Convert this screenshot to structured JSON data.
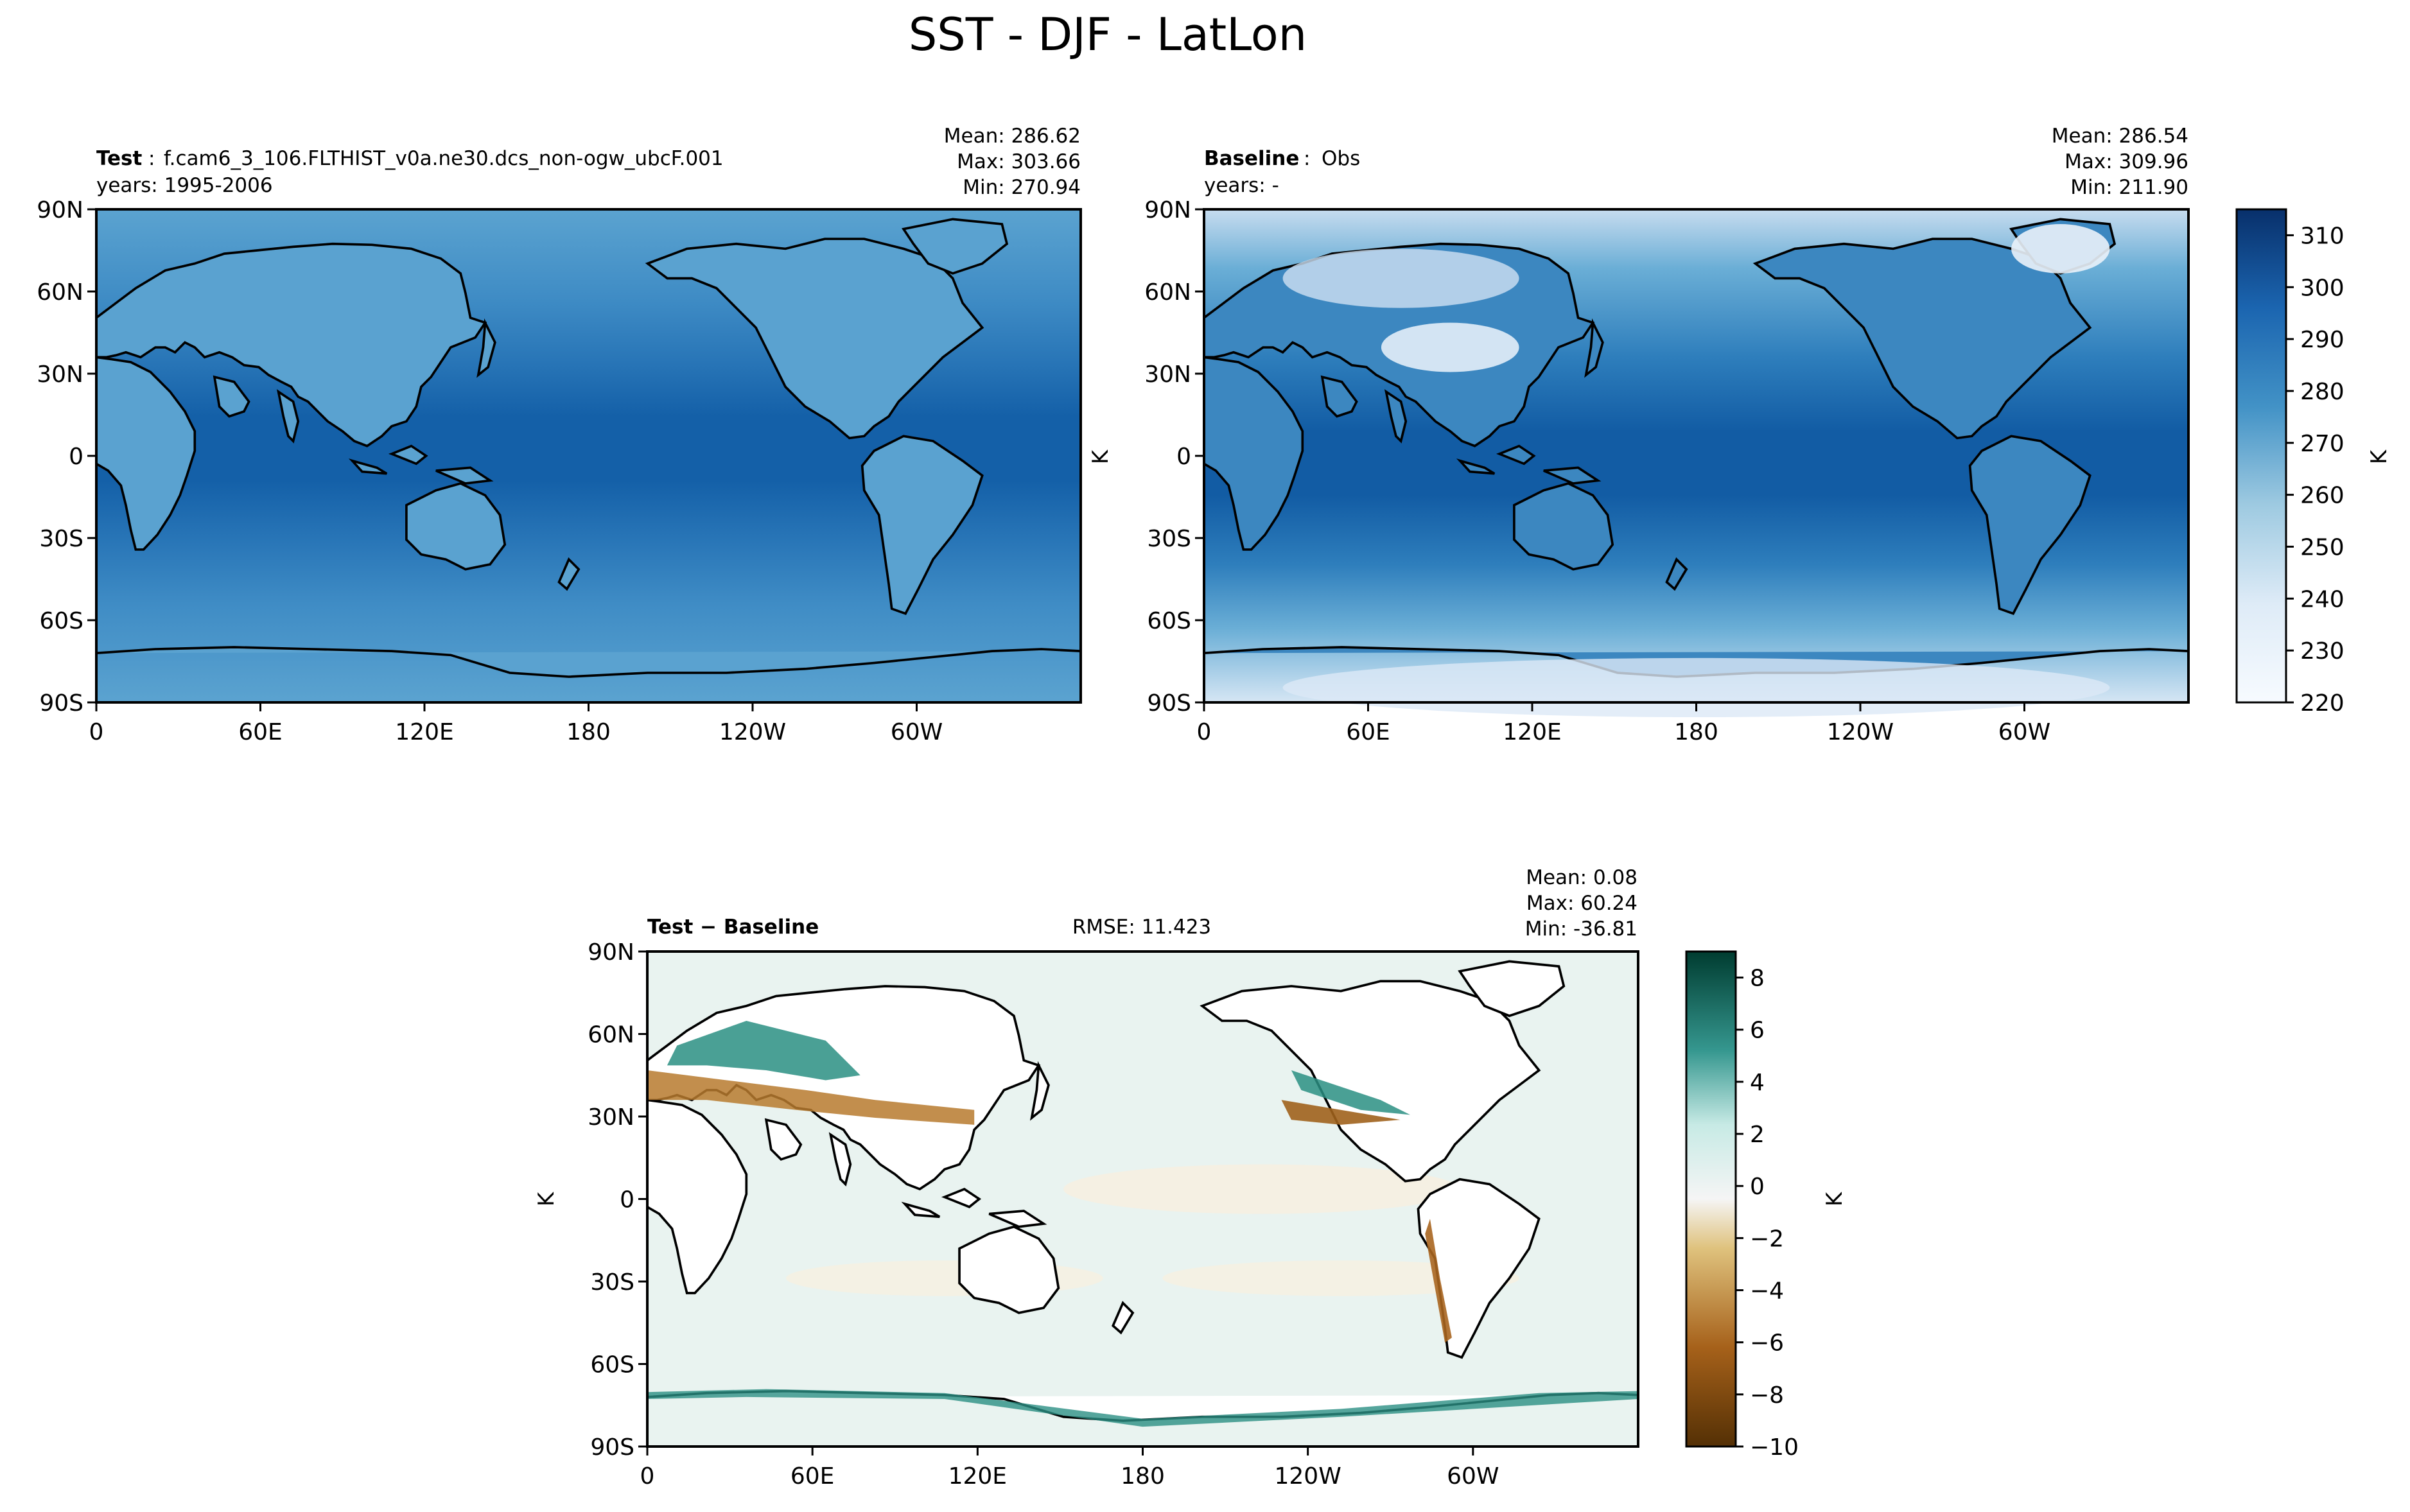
{
  "figure": {
    "title": "SST - DJF - LatLon"
  },
  "chart_data": [
    {
      "type": "heatmap",
      "panel": "test",
      "label_bold": "Test",
      "label_sep": ":",
      "label_value": "f.cam6_3_106.FLTHIST_v0a.ne30.dcs_non-ogw_ubcF.001",
      "years": "years: 1995-2006",
      "stats": [
        "Mean: 286.62",
        "Max: 303.66",
        "Min: 270.94"
      ],
      "yticks": [
        "90N",
        "60N",
        "30N",
        "0",
        "30S",
        "60S",
        "90S"
      ],
      "xticks": [
        "0",
        "60E",
        "120E",
        "180",
        "120W",
        "60W"
      ],
      "ylabel": "",
      "colormap": "Blues"
    },
    {
      "type": "heatmap",
      "panel": "baseline",
      "label_bold": "Baseline",
      "label_sep": ":",
      "label_value": "Obs",
      "years": "years: -",
      "stats": [
        "Mean: 286.54",
        "Max: 309.96",
        "Min: 211.90"
      ],
      "yticks": [
        "90N",
        "60N",
        "30N",
        "0",
        "30S",
        "60S",
        "90S"
      ],
      "xticks": [
        "0",
        "60E",
        "120E",
        "180",
        "120W",
        "60W"
      ],
      "ylabel": "K",
      "colormap": "Blues",
      "colorbar": {
        "label": "K",
        "range": [
          220,
          315
        ],
        "ticks": [
          "220",
          "230",
          "240",
          "250",
          "260",
          "270",
          "280",
          "290",
          "300",
          "310"
        ]
      }
    },
    {
      "type": "heatmap",
      "panel": "difference",
      "label_bold": "Test − Baseline",
      "rmse": "RMSE: 11.423",
      "stats": [
        "Mean:  0.08",
        "Max: 60.24",
        "Min: -36.81"
      ],
      "yticks": [
        "90N",
        "60N",
        "30N",
        "0",
        "30S",
        "60S",
        "90S"
      ],
      "xticks": [
        "0",
        "60E",
        "120E",
        "180",
        "120W",
        "60W"
      ],
      "ylabel": "K",
      "colormap": "BrBG",
      "colorbar": {
        "label": "K",
        "range": [
          -10,
          9
        ],
        "ticks": [
          "8",
          "6",
          "4",
          "2",
          "0",
          "−2",
          "−4",
          "−6",
          "−8",
          "−10"
        ]
      }
    }
  ]
}
